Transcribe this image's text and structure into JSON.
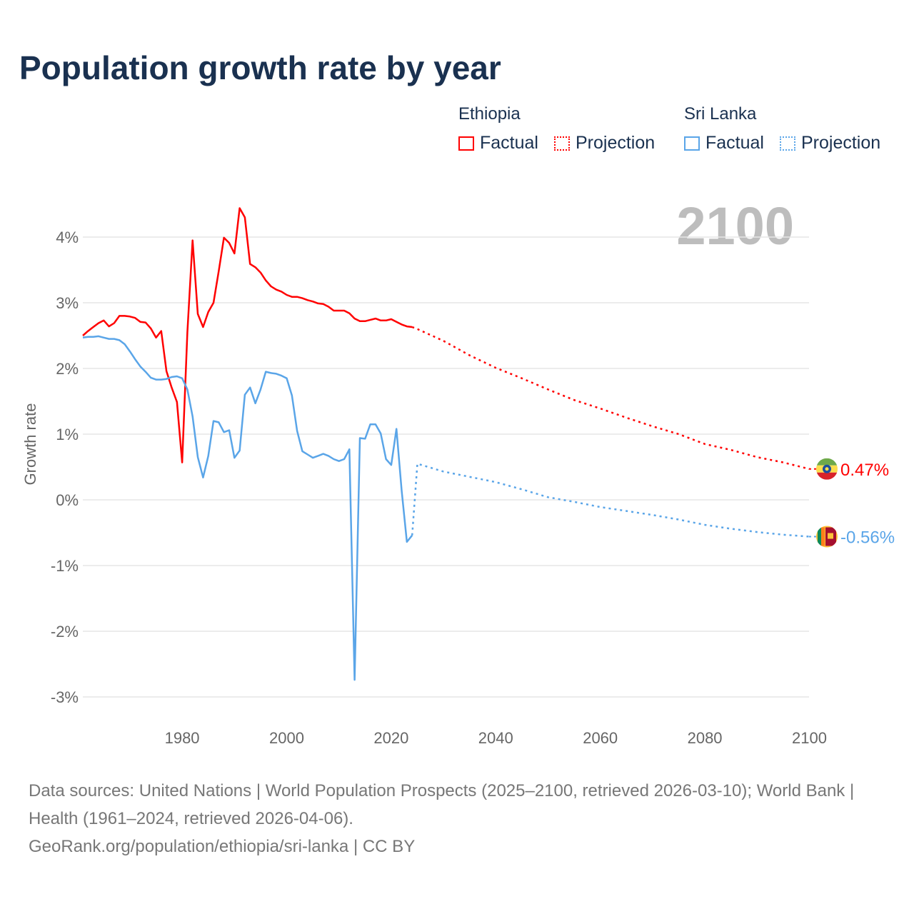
{
  "title": "Population growth rate by year",
  "legend": {
    "groups": [
      {
        "name": "Ethiopia",
        "factual": "Factual",
        "projection": "Projection",
        "color": "#ff0000"
      },
      {
        "name": "Sri Lanka",
        "factual": "Factual",
        "projection": "Projection",
        "color": "#5aa5e8"
      }
    ]
  },
  "year_watermark": "2100",
  "footer": {
    "sources": "Data sources: United Nations | World Population Prospects (2025–2100, retrieved 2026-03-10); World Bank | Health (1961–2024, retrieved 2026-04-06).",
    "link": "GeoRank.org/population/ethiopia/sri-lanka | CC BY"
  },
  "chart_data": {
    "type": "line",
    "title": "Population growth rate by year",
    "xlabel": "",
    "ylabel": "Growth rate",
    "xlim": [
      1961,
      2100
    ],
    "ylim": [
      -3.3,
      4.6
    ],
    "x_ticks": [
      1980,
      2000,
      2020,
      2040,
      2060,
      2080,
      2100
    ],
    "x_tick_labels": [
      "1980",
      "2000",
      "2020",
      "2040",
      "2060",
      "2080",
      "2100"
    ],
    "y_ticks": [
      4,
      3,
      2,
      1,
      0,
      -1,
      -2,
      -3
    ],
    "y_tick_labels": [
      "4%",
      "3%",
      "2%",
      "1%",
      "0%",
      "-1%",
      "-2%",
      "-3%"
    ],
    "grid": true,
    "legend_position": "top-right",
    "series": [
      {
        "name": "Ethiopia",
        "color": "#ff0000",
        "end_label": "0.47%",
        "factual": {
          "x": [
            1961,
            1962,
            1963,
            1964,
            1965,
            1966,
            1967,
            1968,
            1969,
            1970,
            1971,
            1972,
            1973,
            1974,
            1975,
            1976,
            1977,
            1978,
            1979,
            1980,
            1981,
            1982,
            1983,
            1984,
            1985,
            1986,
            1987,
            1988,
            1989,
            1990,
            1991,
            1992,
            1993,
            1994,
            1995,
            1996,
            1997,
            1998,
            1999,
            2000,
            2001,
            2002,
            2003,
            2004,
            2005,
            2006,
            2007,
            2008,
            2009,
            2010,
            2011,
            2012,
            2013,
            2014,
            2015,
            2016,
            2017,
            2018,
            2019,
            2020,
            2021,
            2022,
            2023,
            2024
          ],
          "y": [
            2.5,
            2.57,
            2.63,
            2.69,
            2.73,
            2.64,
            2.69,
            2.8,
            2.8,
            2.79,
            2.77,
            2.71,
            2.7,
            2.61,
            2.47,
            2.57,
            1.96,
            1.71,
            1.49,
            0.57,
            2.55,
            3.95,
            2.83,
            2.63,
            2.86,
            3.0,
            3.48,
            3.99,
            3.91,
            3.75,
            4.44,
            4.3,
            3.59,
            3.54,
            3.46,
            3.34,
            3.25,
            3.2,
            3.17,
            3.12,
            3.09,
            3.09,
            3.07,
            3.04,
            3.02,
            2.99,
            2.98,
            2.94,
            2.88,
            2.88,
            2.88,
            2.84,
            2.76,
            2.72,
            2.72,
            2.74,
            2.76,
            2.73,
            2.73,
            2.75,
            2.71,
            2.67,
            2.64,
            2.63
          ]
        },
        "projection": {
          "x": [
            2024,
            2025,
            2030,
            2035,
            2040,
            2045,
            2050,
            2055,
            2060,
            2065,
            2070,
            2075,
            2080,
            2085,
            2090,
            2095,
            2100
          ],
          "y": [
            2.63,
            2.6,
            2.42,
            2.2,
            2.01,
            1.85,
            1.68,
            1.52,
            1.39,
            1.25,
            1.12,
            1.0,
            0.85,
            0.76,
            0.65,
            0.57,
            0.47
          ]
        }
      },
      {
        "name": "Sri Lanka",
        "color": "#5aa5e8",
        "end_label": "-0.56%",
        "factual": {
          "x": [
            1961,
            1962,
            1963,
            1964,
            1965,
            1966,
            1967,
            1968,
            1969,
            1970,
            1971,
            1972,
            1973,
            1974,
            1975,
            1976,
            1977,
            1978,
            1979,
            1980,
            1981,
            1982,
            1983,
            1984,
            1985,
            1986,
            1987,
            1988,
            1989,
            1990,
            1991,
            1992,
            1993,
            1994,
            1995,
            1996,
            1997,
            1998,
            1999,
            2000,
            2001,
            2002,
            2003,
            2004,
            2005,
            2006,
            2007,
            2008,
            2009,
            2010,
            2011,
            2012,
            2013,
            2014,
            2015,
            2016,
            2017,
            2018,
            2019,
            2020,
            2021,
            2022,
            2023,
            2024
          ],
          "y": [
            2.47,
            2.48,
            2.48,
            2.49,
            2.47,
            2.45,
            2.45,
            2.43,
            2.37,
            2.26,
            2.14,
            2.03,
            1.95,
            1.86,
            1.83,
            1.83,
            1.84,
            1.87,
            1.88,
            1.85,
            1.68,
            1.27,
            0.65,
            0.34,
            0.67,
            1.2,
            1.18,
            1.03,
            1.06,
            0.64,
            0.75,
            1.6,
            1.71,
            1.47,
            1.68,
            1.95,
            1.93,
            1.92,
            1.89,
            1.85,
            1.59,
            1.05,
            0.74,
            0.69,
            0.64,
            0.67,
            0.7,
            0.67,
            0.62,
            0.59,
            0.62,
            0.77,
            -2.74,
            0.94,
            0.93,
            1.15,
            1.15,
            1.01,
            0.62,
            0.53,
            1.08,
            0.14,
            -0.64,
            -0.54
          ]
        },
        "projection": {
          "x": [
            2024,
            2025,
            2030,
            2035,
            2040,
            2045,
            2050,
            2055,
            2060,
            2065,
            2070,
            2075,
            2080,
            2085,
            2090,
            2095,
            2100
          ],
          "y": [
            -0.54,
            0.55,
            0.43,
            0.35,
            0.27,
            0.16,
            0.04,
            -0.03,
            -0.11,
            -0.17,
            -0.23,
            -0.3,
            -0.38,
            -0.44,
            -0.49,
            -0.53,
            -0.56
          ]
        }
      }
    ]
  }
}
